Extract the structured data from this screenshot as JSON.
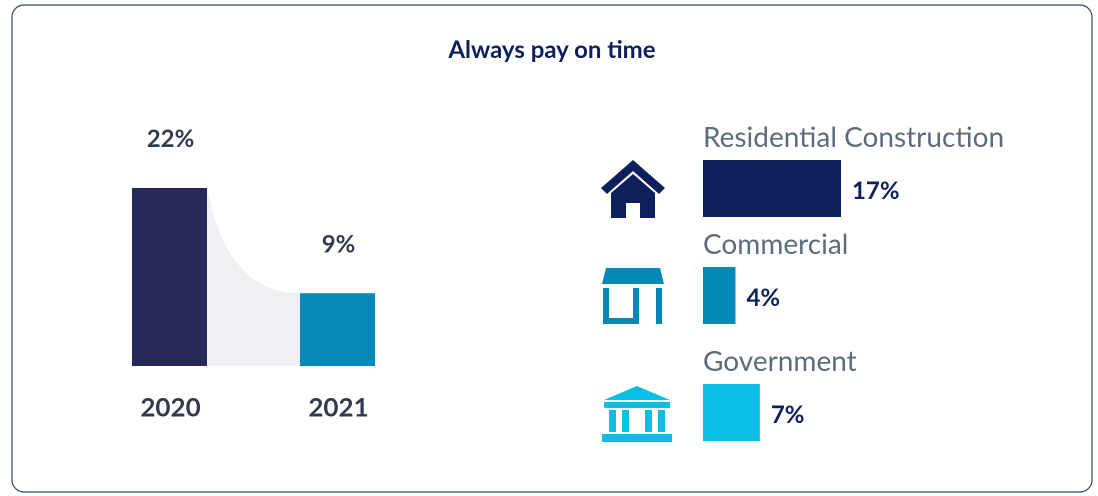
{
  "title": "Always pay on time",
  "chart_data": [
    {
      "type": "bar",
      "categories": [
        "2020",
        "2021"
      ],
      "values": [
        22,
        9
      ],
      "value_labels": [
        "22%",
        "9%"
      ],
      "colors": [
        "#262858",
        "#0788b9"
      ]
    },
    {
      "type": "hbar",
      "categories": [
        "Residential Construction",
        "Commercial",
        "Government"
      ],
      "values": [
        17,
        4,
        7
      ],
      "value_labels": [
        "17%",
        "4%",
        "7%"
      ],
      "colors": [
        "#0e1f5e",
        "#0289b8",
        "#0cbde6"
      ]
    }
  ]
}
